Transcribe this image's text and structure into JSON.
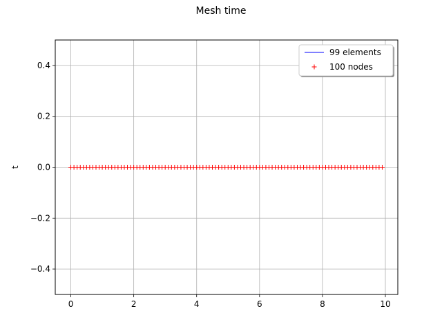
{
  "figure": {
    "title": "Mesh time"
  },
  "chart_data": {
    "type": "line",
    "title": "Mesh time",
    "xlabel": "",
    "ylabel": "t",
    "xlim": [
      -0.495,
      10.395
    ],
    "ylim": [
      -0.5,
      0.5
    ],
    "x_ticks": [
      0,
      2,
      4,
      6,
      8,
      10
    ],
    "x_tick_labels": [
      "0",
      "2",
      "4",
      "6",
      "8",
      "10"
    ],
    "y_ticks": [
      -0.4,
      -0.2,
      0.0,
      0.2,
      0.4
    ],
    "y_tick_labels": [
      "−0.4",
      "−0.2",
      "0.0",
      "0.2",
      "0.4"
    ],
    "grid": true,
    "legend": "top-right",
    "series": [
      {
        "name": "99 elements",
        "style": "line",
        "color": "#0000ff",
        "x_start": 0.0,
        "x_end": 9.9,
        "y": 0.0
      },
      {
        "name": "100 nodes",
        "style": "marker-plus",
        "color": "#ff0000",
        "x_start": 0.0,
        "x_step": 0.1,
        "count": 100,
        "y": 0.0
      }
    ]
  }
}
